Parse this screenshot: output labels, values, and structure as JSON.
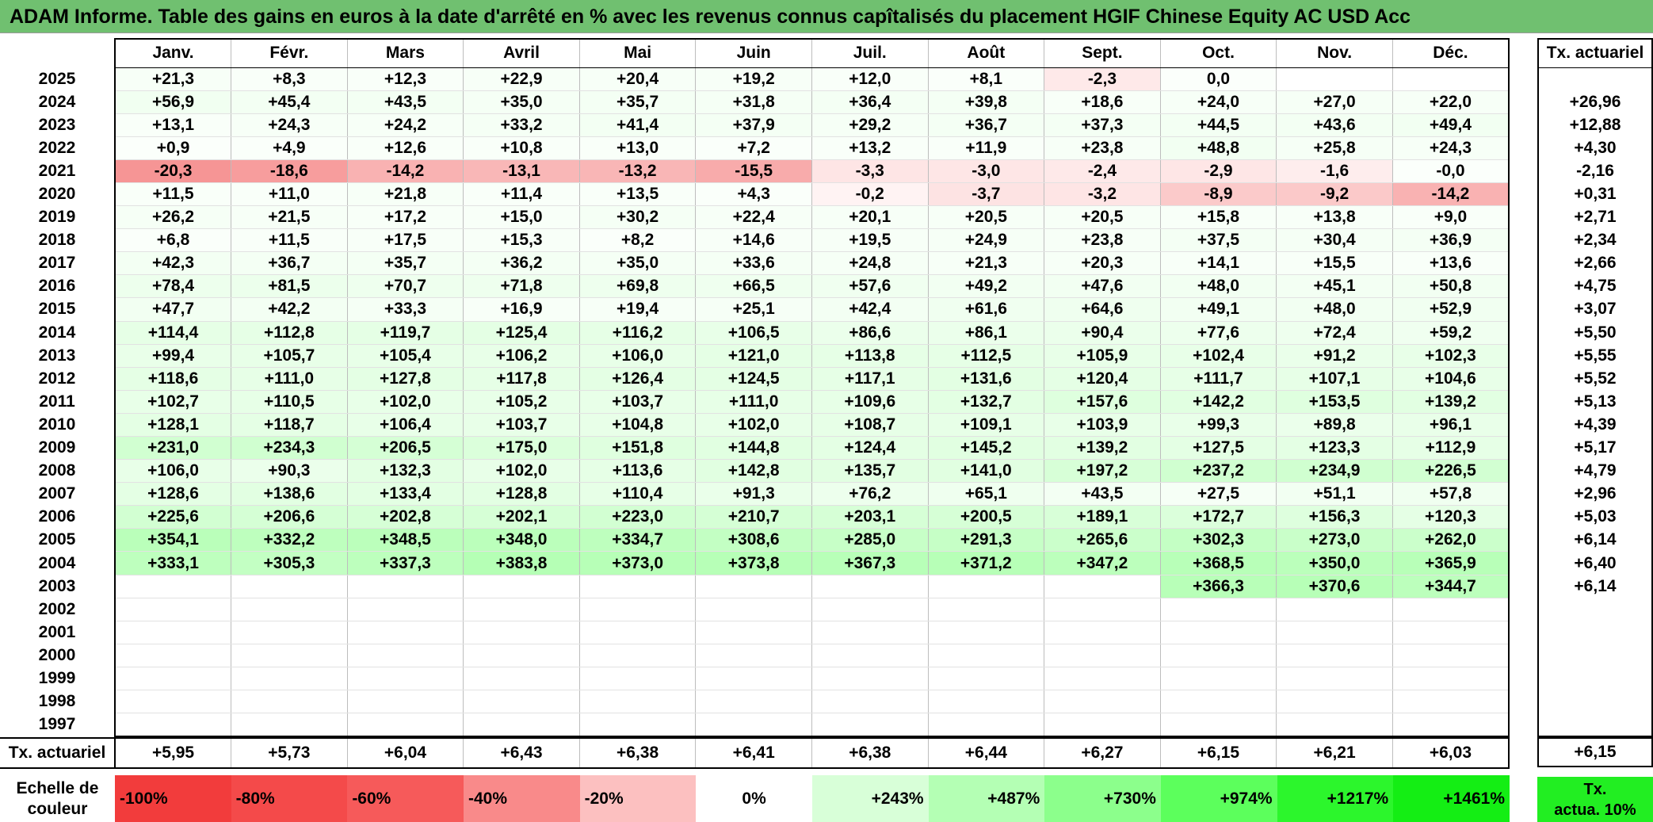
{
  "title": "ADAM Informe. Table des gains en euros à la date d'arrêté en % avec les revenus connus capîtalisés du placement HGIF Chinese Equity AC USD Acc",
  "months": [
    "Janv.",
    "Févr.",
    "Mars",
    "Avril",
    "Mai",
    "Juin",
    "Juil.",
    "Août",
    "Sept.",
    "Oct.",
    "Nov.",
    "Déc."
  ],
  "side_header": "Tx. actuariel",
  "rows": [
    {
      "year": "2025",
      "values": [
        "+21,3",
        "+8,3",
        "+12,3",
        "+22,9",
        "+20,4",
        "+19,2",
        "+12,0",
        "+8,1",
        "-2,3",
        "0,0",
        "",
        ""
      ],
      "rate": ""
    },
    {
      "year": "2024",
      "values": [
        "+56,9",
        "+45,4",
        "+43,5",
        "+35,0",
        "+35,7",
        "+31,8",
        "+36,4",
        "+39,8",
        "+18,6",
        "+24,0",
        "+27,0",
        "+22,0"
      ],
      "rate": "+26,96"
    },
    {
      "year": "2023",
      "values": [
        "+13,1",
        "+24,3",
        "+24,2",
        "+33,2",
        "+41,4",
        "+37,9",
        "+29,2",
        "+36,7",
        "+37,3",
        "+44,5",
        "+43,6",
        "+49,4"
      ],
      "rate": "+12,88"
    },
    {
      "year": "2022",
      "values": [
        "+0,9",
        "+4,9",
        "+12,6",
        "+10,8",
        "+13,0",
        "+7,2",
        "+13,2",
        "+11,9",
        "+23,8",
        "+48,8",
        "+25,8",
        "+24,3"
      ],
      "rate": "+4,30"
    },
    {
      "year": "2021",
      "values": [
        "-20,3",
        "-18,6",
        "-14,2",
        "-13,1",
        "-13,2",
        "-15,5",
        "-3,3",
        "-3,0",
        "-2,4",
        "-2,9",
        "-1,6",
        "-0,0"
      ],
      "rate": "-2,16"
    },
    {
      "year": "2020",
      "values": [
        "+11,5",
        "+11,0",
        "+21,8",
        "+11,4",
        "+13,5",
        "+4,3",
        "-0,2",
        "-3,7",
        "-3,2",
        "-8,9",
        "-9,2",
        "-14,2"
      ],
      "rate": "+0,31"
    },
    {
      "year": "2019",
      "values": [
        "+26,2",
        "+21,5",
        "+17,2",
        "+15,0",
        "+30,2",
        "+22,4",
        "+20,1",
        "+20,5",
        "+20,5",
        "+15,8",
        "+13,8",
        "+9,0"
      ],
      "rate": "+2,71"
    },
    {
      "year": "2018",
      "values": [
        "+6,8",
        "+11,5",
        "+17,5",
        "+15,3",
        "+8,2",
        "+14,6",
        "+19,5",
        "+24,9",
        "+23,8",
        "+37,5",
        "+30,4",
        "+36,9"
      ],
      "rate": "+2,34"
    },
    {
      "year": "2017",
      "values": [
        "+42,3",
        "+36,7",
        "+35,7",
        "+36,2",
        "+35,0",
        "+33,6",
        "+24,8",
        "+21,3",
        "+20,3",
        "+14,1",
        "+15,5",
        "+13,6"
      ],
      "rate": "+2,66"
    },
    {
      "year": "2016",
      "values": [
        "+78,4",
        "+81,5",
        "+70,7",
        "+71,8",
        "+69,8",
        "+66,5",
        "+57,6",
        "+49,2",
        "+47,6",
        "+48,0",
        "+45,1",
        "+50,8"
      ],
      "rate": "+4,75"
    },
    {
      "year": "2015",
      "values": [
        "+47,7",
        "+42,2",
        "+33,3",
        "+16,9",
        "+19,4",
        "+25,1",
        "+42,4",
        "+61,6",
        "+64,6",
        "+49,1",
        "+48,0",
        "+52,9"
      ],
      "rate": "+3,07"
    },
    {
      "year": "2014",
      "values": [
        "+114,4",
        "+112,8",
        "+119,7",
        "+125,4",
        "+116,2",
        "+106,5",
        "+86,6",
        "+86,1",
        "+90,4",
        "+77,6",
        "+72,4",
        "+59,2"
      ],
      "rate": "+5,50"
    },
    {
      "year": "2013",
      "values": [
        "+99,4",
        "+105,7",
        "+105,4",
        "+106,2",
        "+106,0",
        "+121,0",
        "+113,8",
        "+112,5",
        "+105,9",
        "+102,4",
        "+91,2",
        "+102,3"
      ],
      "rate": "+5,55"
    },
    {
      "year": "2012",
      "values": [
        "+118,6",
        "+111,0",
        "+127,8",
        "+117,8",
        "+126,4",
        "+124,5",
        "+117,1",
        "+131,6",
        "+120,4",
        "+111,7",
        "+107,1",
        "+104,6"
      ],
      "rate": "+5,52"
    },
    {
      "year": "2011",
      "values": [
        "+102,7",
        "+110,5",
        "+102,0",
        "+105,2",
        "+103,7",
        "+111,0",
        "+109,6",
        "+132,7",
        "+157,6",
        "+142,2",
        "+153,5",
        "+139,2"
      ],
      "rate": "+5,13"
    },
    {
      "year": "2010",
      "values": [
        "+128,1",
        "+118,7",
        "+106,4",
        "+103,7",
        "+104,8",
        "+102,0",
        "+108,7",
        "+109,1",
        "+103,9",
        "+99,3",
        "+89,8",
        "+96,1"
      ],
      "rate": "+4,39"
    },
    {
      "year": "2009",
      "values": [
        "+231,0",
        "+234,3",
        "+206,5",
        "+175,0",
        "+151,8",
        "+144,8",
        "+124,4",
        "+145,2",
        "+139,2",
        "+127,5",
        "+123,3",
        "+112,9"
      ],
      "rate": "+5,17"
    },
    {
      "year": "2008",
      "values": [
        "+106,0",
        "+90,3",
        "+132,3",
        "+102,0",
        "+113,6",
        "+142,8",
        "+135,7",
        "+141,0",
        "+197,2",
        "+237,2",
        "+234,9",
        "+226,5"
      ],
      "rate": "+4,79"
    },
    {
      "year": "2007",
      "values": [
        "+128,6",
        "+138,6",
        "+133,4",
        "+128,8",
        "+110,4",
        "+91,3",
        "+76,2",
        "+65,1",
        "+43,5",
        "+27,5",
        "+51,1",
        "+57,8"
      ],
      "rate": "+2,96"
    },
    {
      "year": "2006",
      "values": [
        "+225,6",
        "+206,6",
        "+202,8",
        "+202,1",
        "+223,0",
        "+210,7",
        "+203,1",
        "+200,5",
        "+189,1",
        "+172,7",
        "+156,3",
        "+120,3"
      ],
      "rate": "+5,03"
    },
    {
      "year": "2005",
      "values": [
        "+354,1",
        "+332,2",
        "+348,5",
        "+348,0",
        "+334,7",
        "+308,6",
        "+285,0",
        "+291,3",
        "+265,6",
        "+302,3",
        "+273,0",
        "+262,0"
      ],
      "rate": "+6,14"
    },
    {
      "year": "2004",
      "values": [
        "+333,1",
        "+305,3",
        "+337,3",
        "+383,8",
        "+373,0",
        "+373,8",
        "+367,3",
        "+371,2",
        "+347,2",
        "+368,5",
        "+350,0",
        "+365,9"
      ],
      "rate": "+6,40"
    },
    {
      "year": "2003",
      "values": [
        "",
        "",
        "",
        "",
        "",
        "",
        "",
        "",
        "",
        "+366,3",
        "+370,6",
        "+344,7"
      ],
      "rate": "+6,14"
    },
    {
      "year": "2002",
      "values": [
        "",
        "",
        "",
        "",
        "",
        "",
        "",
        "",
        "",
        "",
        "",
        ""
      ],
      "rate": ""
    },
    {
      "year": "2001",
      "values": [
        "",
        "",
        "",
        "",
        "",
        "",
        "",
        "",
        "",
        "",
        "",
        ""
      ],
      "rate": ""
    },
    {
      "year": "2000",
      "values": [
        "",
        "",
        "",
        "",
        "",
        "",
        "",
        "",
        "",
        "",
        "",
        ""
      ],
      "rate": ""
    },
    {
      "year": "1999",
      "values": [
        "",
        "",
        "",
        "",
        "",
        "",
        "",
        "",
        "",
        "",
        "",
        ""
      ],
      "rate": ""
    },
    {
      "year": "1998",
      "values": [
        "",
        "",
        "",
        "",
        "",
        "",
        "",
        "",
        "",
        "",
        "",
        ""
      ],
      "rate": ""
    },
    {
      "year": "1997",
      "values": [
        "",
        "",
        "",
        "",
        "",
        "",
        "",
        "",
        "",
        "",
        "",
        ""
      ],
      "rate": ""
    }
  ],
  "footer": {
    "label": "Tx. actuariel",
    "values": [
      "+5,95",
      "+5,73",
      "+6,04",
      "+6,43",
      "+6,38",
      "+6,41",
      "+6,38",
      "+6,44",
      "+6,27",
      "+6,15",
      "+6,21",
      "+6,03"
    ],
    "overall": "+6,15"
  },
  "scale": {
    "label_line1": "Echelle de",
    "label_line2": "couleur",
    "items": [
      {
        "text": "-100%",
        "color": "#f23c3c",
        "kind": "neg"
      },
      {
        "text": "-80%",
        "color": "#f44a4a",
        "kind": "neg"
      },
      {
        "text": "-60%",
        "color": "#f65a5a",
        "kind": "neg"
      },
      {
        "text": "-40%",
        "color": "#f98a8a",
        "kind": "neg"
      },
      {
        "text": "-20%",
        "color": "#fcc0c0",
        "kind": "neg"
      },
      {
        "text": "0%",
        "color": "#ffffff",
        "kind": "zero"
      },
      {
        "text": "+243%",
        "color": "#d8ffd8",
        "kind": "pos"
      },
      {
        "text": "+487%",
        "color": "#b4ffb4",
        "kind": "pos"
      },
      {
        "text": "+730%",
        "color": "#8cff8c",
        "kind": "pos"
      },
      {
        "text": "+974%",
        "color": "#5cff5c",
        "kind": "pos"
      },
      {
        "text": "+1217%",
        "color": "#2cf62c",
        "kind": "pos"
      },
      {
        "text": "+1461%",
        "color": "#14ee14",
        "kind": "pos"
      }
    ],
    "side_line1": "Tx.",
    "side_line2": "actua. 10%",
    "side_color": "#22ee22"
  },
  "colors": {
    "title_bg": "#70c070",
    "negative_max": "#f23c3c",
    "positive_max": "#14ee14"
  }
}
